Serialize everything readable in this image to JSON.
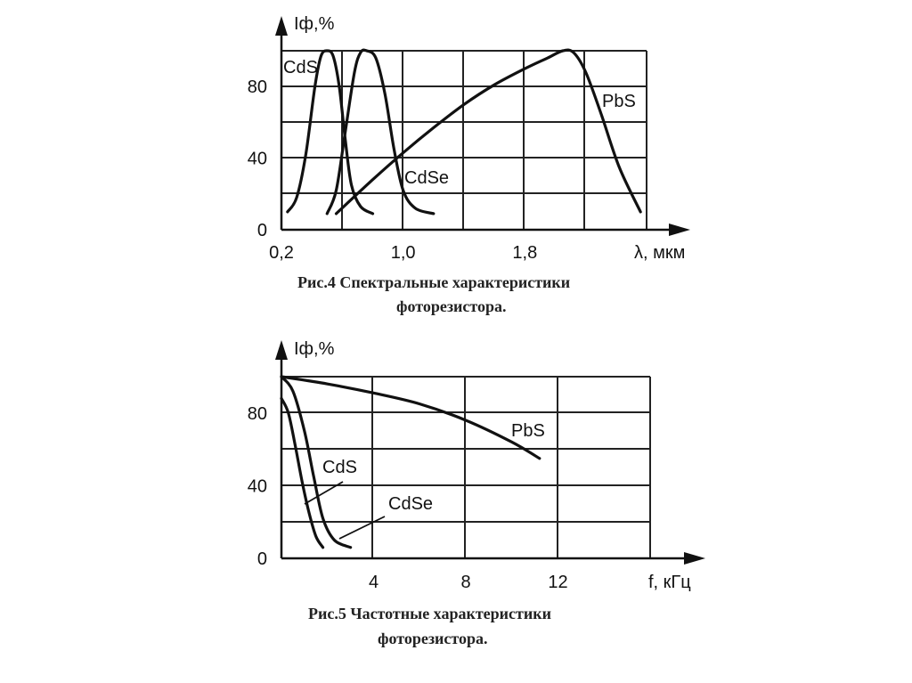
{
  "chart_data": [
    {
      "type": "line",
      "ylabel": "Iф,%",
      "xlabel": "λ, мкм",
      "ylim": [
        0,
        100
      ],
      "xlim": [
        0.2,
        2.6
      ],
      "xticks": [
        "0,2",
        "1,0",
        "1,8"
      ],
      "xtick_values": [
        0.2,
        1.0,
        1.8
      ],
      "yticks": [
        "0",
        "40",
        "80"
      ],
      "ytick_values": [
        0,
        40,
        80
      ],
      "grid": true,
      "caption_line1": "Рис.4    Спектральные характеристики",
      "caption_line2": "фоторезистора.",
      "series": [
        {
          "name": "CdS",
          "x": [
            0.24,
            0.3,
            0.36,
            0.42,
            0.46,
            0.5,
            0.54,
            0.58,
            0.62,
            0.66,
            0.72,
            0.8
          ],
          "y": [
            10,
            18,
            42,
            80,
            97,
            100,
            97,
            80,
            50,
            25,
            13,
            9
          ]
        },
        {
          "name": "CdSe",
          "x": [
            0.5,
            0.56,
            0.62,
            0.68,
            0.72,
            0.76,
            0.82,
            0.88,
            0.94,
            1.0,
            1.08,
            1.2
          ],
          "y": [
            9,
            22,
            55,
            88,
            99,
            100,
            96,
            76,
            45,
            22,
            12,
            9
          ]
        },
        {
          "name": "PbS",
          "x": [
            0.56,
            0.8,
            1.0,
            1.2,
            1.4,
            1.6,
            1.8,
            1.95,
            2.05,
            2.12,
            2.2,
            2.3,
            2.42,
            2.56
          ],
          "y": [
            9,
            28,
            43,
            57,
            70,
            81,
            90,
            96,
            100,
            99,
            88,
            65,
            35,
            10
          ]
        }
      ]
    },
    {
      "type": "line",
      "ylabel": "Iф,%",
      "xlabel": "f, кГц",
      "ylim": [
        0,
        100
      ],
      "xlim": [
        0,
        16
      ],
      "xticks": [
        "4",
        "8",
        "12"
      ],
      "xtick_values": [
        4,
        8,
        12
      ],
      "yticks": [
        "0",
        "40",
        "80"
      ],
      "ytick_values": [
        0,
        40,
        80
      ],
      "grid": true,
      "caption_line1": "Рис.5 Частотные характеристики",
      "caption_line2": "фоторезистора.",
      "series": [
        {
          "name": "PbS",
          "x": [
            0,
            2,
            4,
            6,
            8,
            10,
            11.2
          ],
          "y": [
            100,
            96,
            91,
            85,
            76,
            64,
            55
          ]
        },
        {
          "name": "CdS",
          "x": [
            0,
            0.3,
            0.6,
            0.9,
            1.2,
            1.5,
            1.8
          ],
          "y": [
            88,
            80,
            62,
            42,
            25,
            12,
            6
          ]
        },
        {
          "name": "CdSe",
          "x": [
            0,
            0.5,
            1.0,
            1.4,
            1.8,
            2.3,
            3.0
          ],
          "y": [
            100,
            92,
            70,
            45,
            22,
            10,
            6
          ]
        }
      ]
    }
  ]
}
